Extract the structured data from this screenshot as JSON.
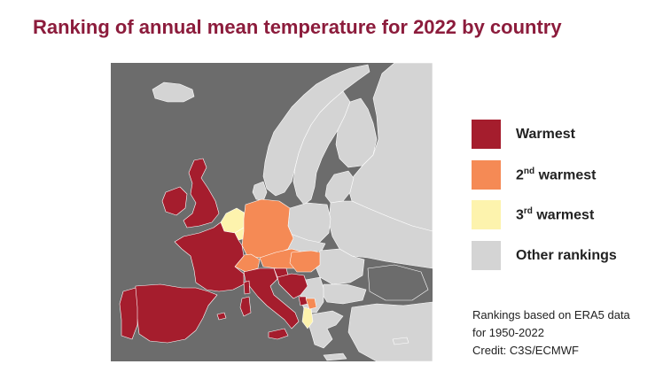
{
  "title": "Ranking of annual mean temperature for 2022 by country",
  "colors": {
    "warmest": "#a51d2d",
    "second": "#f58a55",
    "third": "#fdf3ad",
    "other": "#d4d4d4",
    "sea": "#6c6c6c",
    "title": "#8c1c3c"
  },
  "legend": [
    {
      "key": "warmest",
      "label": "Warmest",
      "ordinal": "",
      "suffix": ""
    },
    {
      "key": "second",
      "label": " warmest",
      "ordinal": "2",
      "suffix": "nd"
    },
    {
      "key": "third",
      "label": " warmest",
      "ordinal": "3",
      "suffix": "rd"
    },
    {
      "key": "other",
      "label": "Other rankings",
      "ordinal": "",
      "suffix": ""
    }
  ],
  "notes": {
    "line1": "Rankings based on ERA5 data",
    "line2": "for 1950-2022",
    "credit": "Credit: C3S/ECMWF"
  }
}
